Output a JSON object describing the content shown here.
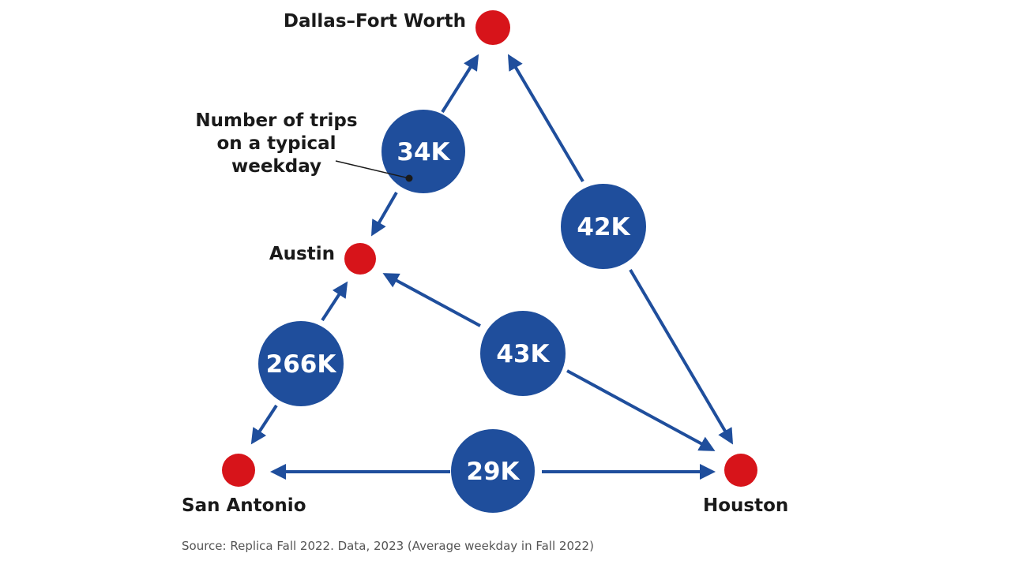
{
  "colors": {
    "flow": "#1f4e9c",
    "city": "#d7141a",
    "text": "#1a1a1a"
  },
  "cities": {
    "dfw": "Dallas–Fort Worth",
    "austin": "Austin",
    "san_antonio": "San Antonio",
    "houston": "Houston"
  },
  "flows": [
    {
      "from": "Dallas–Fort Worth",
      "to": "Austin",
      "label": "34K"
    },
    {
      "from": "Dallas–Fort Worth",
      "to": "Houston",
      "label": "42K"
    },
    {
      "from": "Austin",
      "to": "San Antonio",
      "label": "266K"
    },
    {
      "from": "Austin",
      "to": "Houston",
      "label": "43K"
    },
    {
      "from": "San Antonio",
      "to": "Houston",
      "label": "29K"
    }
  ],
  "annotation": [
    "Number of trips",
    "on a typical",
    "weekday"
  ],
  "source": "Source: Replica Fall 2022. Data, 2023 (Average weekday in Fall 2022)"
}
